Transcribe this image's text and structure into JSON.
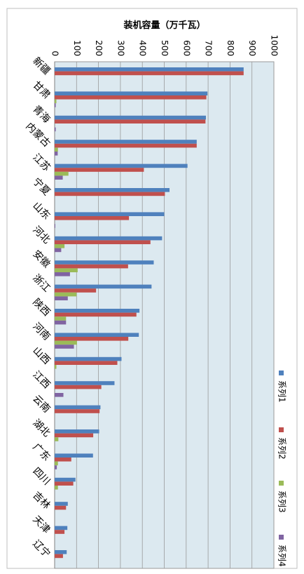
{
  "chart_data": {
    "type": "bar",
    "orientation": "horizontal",
    "title": "装机容量（万千瓦）",
    "xlabel": "",
    "ylabel": "",
    "xlim": [
      0,
      1000
    ],
    "x_ticks": [
      0,
      100,
      200,
      300,
      400,
      500,
      600,
      700,
      800,
      900,
      1000
    ],
    "grid": true,
    "legend_position": "right",
    "categories": [
      "新疆",
      "甘肃",
      "青海",
      "内蒙古",
      "江苏",
      "宁夏",
      "山东",
      "河北",
      "安徽",
      "浙江",
      "陕西",
      "河南",
      "山西",
      "江西",
      "云南",
      "湖北",
      "广东",
      "四川",
      "吉林",
      "天津",
      "辽宁"
    ],
    "series": [
      {
        "name": "系列1",
        "color": "#4F81BD",
        "values": [
          862,
          697,
          690,
          648,
          606,
          524,
          500,
          490,
          452,
          442,
          387,
          384,
          305,
          273,
          209,
          203,
          175,
          95,
          60,
          58,
          55
        ]
      },
      {
        "name": "系列2",
        "color": "#C0504D",
        "values": [
          862,
          692,
          688,
          648,
          407,
          503,
          339,
          437,
          335,
          189,
          373,
          336,
          286,
          213,
          205,
          176,
          76,
          85,
          52,
          45,
          38
        ]
      },
      {
        "name": "系列3",
        "color": "#9BBB59",
        "values": [
          0,
          8,
          0,
          15,
          63,
          0,
          0,
          45,
          105,
          100,
          52,
          102,
          8,
          0,
          0,
          17,
          15,
          15,
          0,
          0,
          0
        ]
      },
      {
        "name": "系列4",
        "color": "#8064A2",
        "values": [
          0,
          5,
          5,
          14,
          37,
          0,
          3,
          30,
          70,
          60,
          52,
          88,
          0,
          40,
          0,
          0,
          10,
          0,
          0,
          0,
          0
        ]
      }
    ]
  }
}
